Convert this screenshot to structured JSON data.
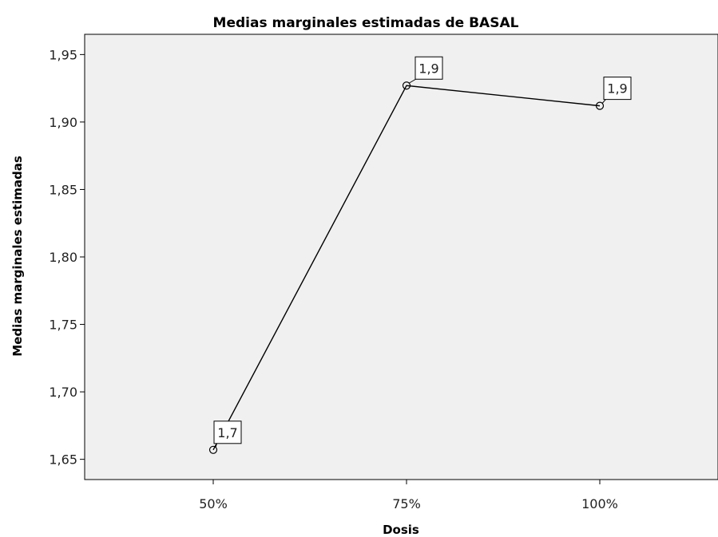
{
  "chart_data": {
    "type": "line",
    "title": "Medias marginales estimadas de BASAL",
    "xlabel": "Dosis",
    "ylabel": "Medias marginales estimadas",
    "categories": [
      "50%",
      "75%",
      "100%"
    ],
    "series": [
      {
        "values": [
          1.657,
          1.927,
          1.912
        ],
        "data_labels": [
          "1,7",
          "1,9",
          "1,9"
        ]
      }
    ],
    "ylim": [
      1.635,
      1.965
    ],
    "yticks": [
      1.65,
      1.7,
      1.75,
      1.8,
      1.85,
      1.9,
      1.95
    ],
    "ytick_labels": [
      "1,65",
      "1,70",
      "1,75",
      "1,80",
      "1,85",
      "1,90",
      "1,95"
    ],
    "grid": false,
    "legend": "none",
    "colors": {
      "plot_background": "#f0f0f0",
      "line": "#000000"
    }
  }
}
